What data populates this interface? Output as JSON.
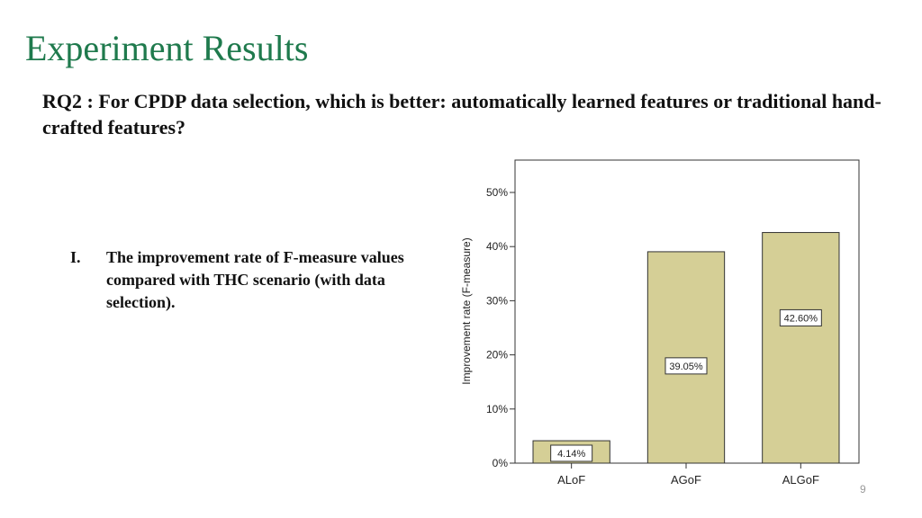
{
  "slide": {
    "title": "Experiment Results",
    "question": "RQ2 : For CPDP data selection, which is better: automatically learned features or traditional hand-crafted features?",
    "item_marker": "I.",
    "item_text": "The improvement rate of F-measure values compared with THC scenario (with data selection).",
    "page_number": "9"
  },
  "colors": {
    "title": "#1f7a4d",
    "bar_fill": "#d5cf96",
    "bar_stroke": "#333333"
  },
  "chart_data": {
    "type": "bar",
    "categories": [
      "ALoF",
      "AGoF",
      "ALGoF"
    ],
    "values": [
      4.14,
      39.05,
      42.6
    ],
    "data_labels": [
      "4.14%",
      "39.05%",
      "42.60%"
    ],
    "ylabel": "Improvement rate (F-measure)",
    "ylim": [
      0,
      55
    ],
    "yticks": [
      0,
      10,
      20,
      30,
      40,
      50
    ],
    "ytick_labels": [
      "0%",
      "10%",
      "20%",
      "30%",
      "40%",
      "50%"
    ],
    "grid": false,
    "legend": false
  }
}
